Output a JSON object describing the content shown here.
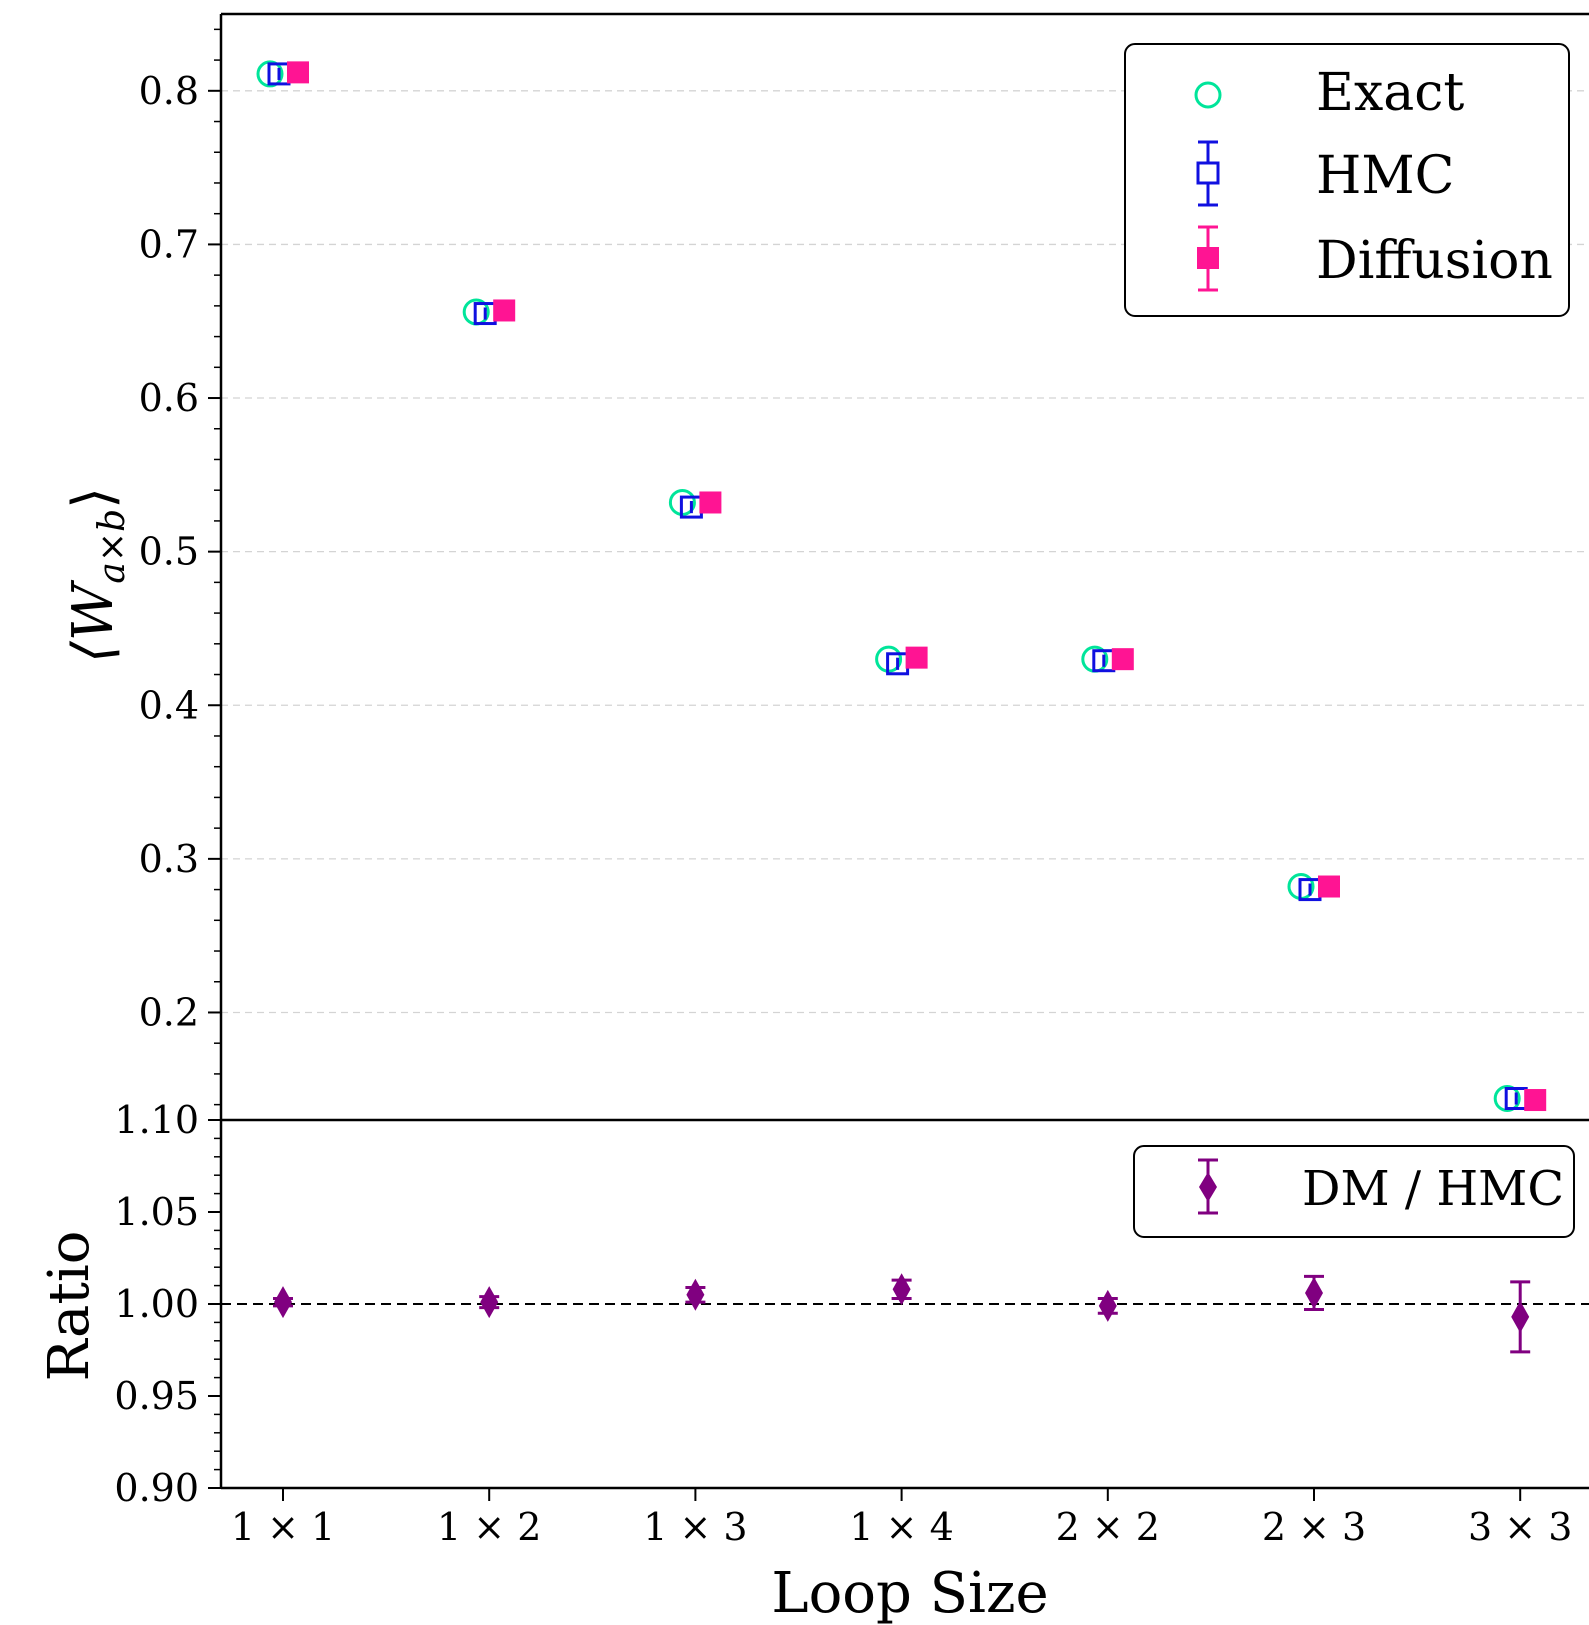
{
  "chart_data": [
    {
      "type": "scatter",
      "panel": "top",
      "ylabel": "⟨W",
      "ylabel_sub": "a×b",
      "ylabel_close": "⟩",
      "ylim": [
        0.13,
        0.85
      ],
      "yticks": [
        0.2,
        0.3,
        0.4,
        0.5,
        0.6,
        0.7,
        0.8
      ],
      "ytick_labels": [
        "0.2",
        "0.3",
        "0.4",
        "0.5",
        "0.6",
        "0.7",
        "0.8"
      ],
      "grid": "horizontal dashed",
      "legend_position": "top-right",
      "categories": [
        "1 × 1",
        "1 × 2",
        "1 × 3",
        "1 × 4",
        "2 × 2",
        "2 × 3",
        "3 × 3"
      ],
      "series": [
        {
          "name": "Exact",
          "marker": "open-circle",
          "color": "#00e59a",
          "values": [
            0.811,
            0.656,
            0.532,
            0.43,
            0.43,
            0.282,
            0.144
          ]
        },
        {
          "name": "HMC",
          "marker": "open-square",
          "color": "#1010e0",
          "values": [
            0.811,
            0.655,
            0.529,
            0.427,
            0.429,
            0.28,
            0.144
          ],
          "errors": [
            0.002,
            0.002,
            0.002,
            0.002,
            0.002,
            0.002,
            0.002
          ]
        },
        {
          "name": "Diffusion",
          "marker": "filled-square",
          "color": "#ff1493",
          "values": [
            0.812,
            0.657,
            0.532,
            0.431,
            0.43,
            0.282,
            0.143
          ],
          "errors": [
            0.001,
            0.001,
            0.001,
            0.001,
            0.001,
            0.001,
            0.001
          ]
        }
      ]
    },
    {
      "type": "scatter",
      "panel": "bottom",
      "ylabel": "Ratio",
      "xlabel": "Loop Size",
      "ylim": [
        0.9,
        1.1
      ],
      "yticks": [
        0.9,
        0.95,
        1.0,
        1.05,
        1.1
      ],
      "ytick_labels": [
        "0.90",
        "0.95",
        "1.00",
        "1.05",
        "1.10"
      ],
      "reference_line": 1.0,
      "legend_position": "top-right",
      "categories": [
        "1 × 1",
        "1 × 2",
        "1 × 3",
        "1 × 4",
        "2 × 2",
        "2 × 3",
        "3 × 3"
      ],
      "series": [
        {
          "name": "DM / HMC",
          "marker": "diamond",
          "color": "#800080",
          "values": [
            1.001,
            1.001,
            1.005,
            1.008,
            0.999,
            1.006,
            0.993
          ],
          "errors": [
            0.002,
            0.003,
            0.004,
            0.005,
            0.004,
            0.009,
            0.019
          ]
        }
      ]
    }
  ]
}
